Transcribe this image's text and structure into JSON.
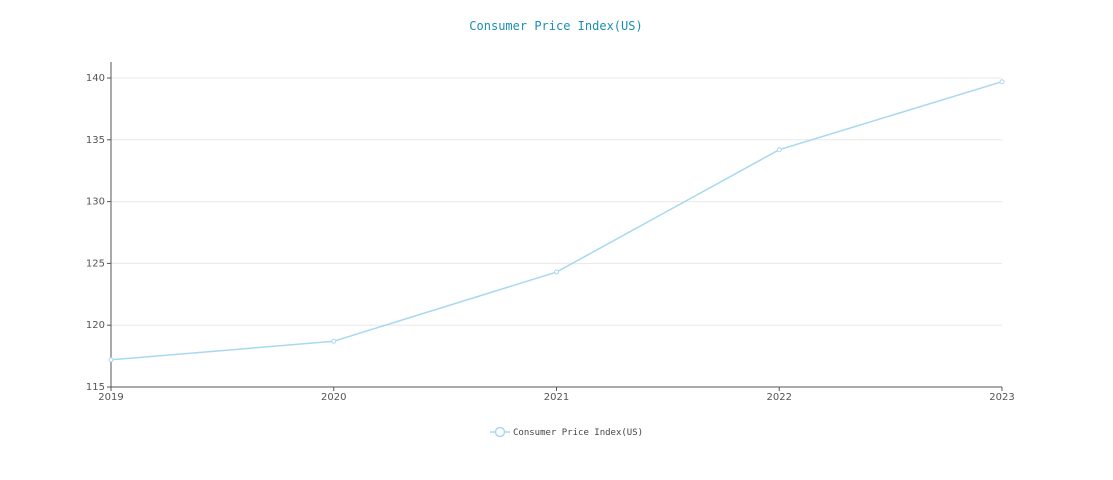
{
  "chart_data": {
    "type": "line",
    "title": "Consumer Price Index(US)",
    "x": [
      "2019",
      "2020",
      "2021",
      "2022",
      "2023"
    ],
    "series": [
      {
        "name": "Consumer Price Index(US)",
        "values": [
          117.2,
          118.7,
          124.3,
          134.2,
          139.7
        ]
      }
    ],
    "xlabel": "",
    "ylabel": "",
    "ylim": [
      115,
      140
    ],
    "yticks": [
      115,
      120,
      125,
      130,
      135,
      140
    ],
    "grid": true,
    "legend": "bottom-center",
    "colors": {
      "title": "#1a8fb3",
      "line": "#a8d8f0",
      "axis": "#555555",
      "grid": "#e8e8e8"
    }
  }
}
